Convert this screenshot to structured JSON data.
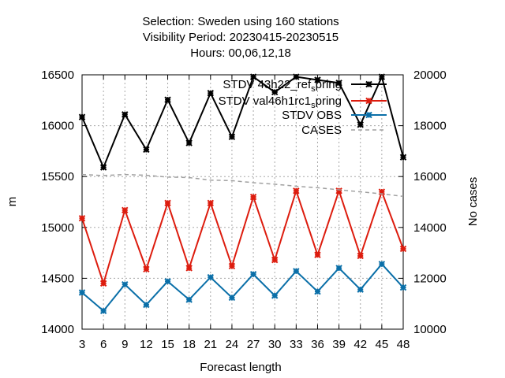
{
  "chart_data": {
    "type": "line",
    "title_lines": [
      "Selection: Sweden using   160 stations",
      "Visibility   Period: 20230415-20230515",
      "Hours:  00,06,12,18"
    ],
    "xlabel": "Forecast length",
    "ylabel": "m",
    "y2label": "No cases",
    "x": [
      3,
      6,
      9,
      12,
      15,
      18,
      21,
      24,
      27,
      30,
      33,
      36,
      39,
      42,
      45,
      48
    ],
    "xlim": [
      3,
      48
    ],
    "ylim": [
      14000,
      16500
    ],
    "y2lim": [
      10000,
      20000
    ],
    "yticks": [
      14000,
      14500,
      15000,
      15500,
      16000,
      16500
    ],
    "y2ticks": [
      10000,
      12000,
      14000,
      16000,
      18000,
      20000
    ],
    "grid": true,
    "legend_position": "top-right",
    "series": [
      {
        "name": "STDV 43h22_ref_spring",
        "name_parts": [
          "STDV 43h22_ref",
          "s",
          "pring"
        ],
        "color": "#000000",
        "axis": "y",
        "values": [
          16085,
          15590,
          16110,
          15765,
          16255,
          15830,
          16320,
          15890,
          16480,
          16330,
          16480,
          16450,
          16420,
          16010,
          16480,
          15690
        ]
      },
      {
        "name": "STDV val46h1rc1_spring",
        "name_parts": [
          "STDV val46h1rc1",
          "s",
          "pring"
        ],
        "color": "#dd1c0e",
        "axis": "y",
        "values": [
          15090,
          14450,
          15170,
          14590,
          15240,
          14600,
          15240,
          14620,
          15300,
          14680,
          15360,
          14730,
          15360,
          14720,
          15350,
          14790
        ]
      },
      {
        "name": "STDV OBS",
        "name_parts": [
          "STDV OBS",
          "",
          ""
        ],
        "color": "#0a6fa8",
        "axis": "y",
        "values": [
          14360,
          14180,
          14440,
          14240,
          14470,
          14290,
          14510,
          14310,
          14540,
          14330,
          14570,
          14370,
          14600,
          14390,
          14640,
          14410
        ]
      },
      {
        "name": "CASES",
        "name_parts": [
          "CASES",
          "",
          ""
        ],
        "color": "#a0a0a0",
        "axis": "y2",
        "dashed": true,
        "values": [
          16080,
          16040,
          16080,
          16050,
          15980,
          15960,
          15860,
          15840,
          15760,
          15700,
          15620,
          15560,
          15480,
          15400,
          15320,
          15220
        ]
      }
    ]
  }
}
